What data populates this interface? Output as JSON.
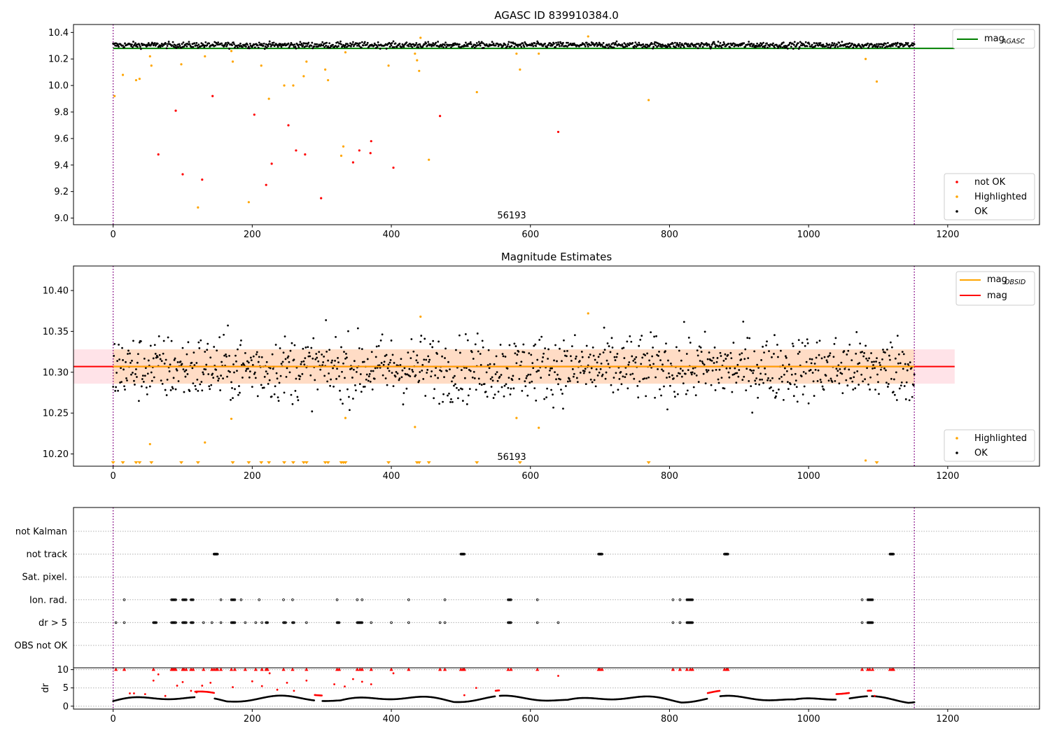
{
  "colors": {
    "ok": "#000000",
    "not_ok": "#ff0000",
    "highlighted": "#ffa500",
    "agasc_line": "#008000",
    "obsid_line": "#ffa500",
    "mag_line": "#ff0000",
    "obs_line": "#800080",
    "band_pink": "#ffc0cb",
    "band_orange": "#ffdab9"
  },
  "chart_data": [
    {
      "type": "scatter",
      "title": "AGASC ID 839910384.0",
      "xlim": [
        -57,
        1332
      ],
      "ylim": [
        8.95,
        10.46
      ],
      "xticks": [
        0,
        200,
        400,
        600,
        800,
        1000,
        1200
      ],
      "xtick_labels": [
        "0",
        "200",
        "400",
        "600",
        "800",
        "1000",
        "1200"
      ],
      "yticks": [
        9.0,
        9.2,
        9.4,
        9.6,
        9.8,
        10.0,
        10.2,
        10.4
      ],
      "ytick_labels": [
        "9.0",
        "9.2",
        "9.4",
        "9.6",
        "9.8",
        "10.0",
        "10.2",
        "10.4"
      ],
      "obsid_label": "56193",
      "obs_boundaries": [
        0,
        1152
      ],
      "legend": {
        "position": "upper right",
        "entries": [
          "mag",
          "AGASC"
        ]
      },
      "legend_points": {
        "position": "lower right",
        "entries": [
          "not OK",
          "Highlighted",
          "OK"
        ]
      },
      "agasc_mag": 10.28,
      "agasc_range": [
        0,
        1210
      ],
      "ok_band": {
        "center": 10.305,
        "spread": 0.05
      },
      "not_ok": [
        [
          65,
          9.48
        ],
        [
          90,
          9.81
        ],
        [
          100,
          9.33
        ],
        [
          128,
          9.29
        ],
        [
          143,
          9.92
        ],
        [
          203,
          9.78
        ],
        [
          220,
          9.25
        ],
        [
          228,
          9.41
        ],
        [
          252,
          9.7
        ],
        [
          263,
          9.51
        ],
        [
          276,
          9.48
        ],
        [
          299,
          9.15
        ],
        [
          345,
          9.42
        ],
        [
          354,
          9.51
        ],
        [
          370,
          9.49
        ],
        [
          371,
          9.58
        ],
        [
          403,
          9.38
        ],
        [
          470,
          9.77
        ],
        [
          640,
          9.65
        ]
      ],
      "highlighted": [
        [
          2,
          9.92
        ],
        [
          14,
          10.08
        ],
        [
          33,
          10.04
        ],
        [
          38,
          10.05
        ],
        [
          53,
          10.22
        ],
        [
          55,
          10.15
        ],
        [
          98,
          10.16
        ],
        [
          122,
          9.08
        ],
        [
          132,
          10.22
        ],
        [
          170,
          10.26
        ],
        [
          172,
          10.18
        ],
        [
          195,
          9.12
        ],
        [
          213,
          10.15
        ],
        [
          224,
          9.9
        ],
        [
          246,
          10.0
        ],
        [
          259,
          10.0
        ],
        [
          274,
          10.07
        ],
        [
          278,
          10.18
        ],
        [
          305,
          10.12
        ],
        [
          309,
          10.04
        ],
        [
          328,
          9.47
        ],
        [
          331,
          9.54
        ],
        [
          334,
          10.25
        ],
        [
          396,
          10.15
        ],
        [
          434,
          10.24
        ],
        [
          437,
          10.19
        ],
        [
          440,
          10.11
        ],
        [
          442,
          10.36
        ],
        [
          454,
          9.44
        ],
        [
          523,
          9.95
        ],
        [
          580,
          10.24
        ],
        [
          585,
          10.12
        ],
        [
          612,
          10.24
        ],
        [
          683,
          10.37
        ],
        [
          770,
          9.89
        ],
        [
          1082,
          10.2
        ],
        [
          1098,
          10.03
        ]
      ]
    },
    {
      "type": "scatter",
      "title": "Magnitude Estimates",
      "xlim": [
        -57,
        1332
      ],
      "ylim": [
        10.185,
        10.43
      ],
      "xticks": [
        0,
        200,
        400,
        600,
        800,
        1000,
        1200
      ],
      "xtick_labels": [
        "0",
        "200",
        "400",
        "600",
        "800",
        "1000",
        "1200"
      ],
      "yticks": [
        10.2,
        10.25,
        10.3,
        10.35,
        10.4
      ],
      "ytick_labels": [
        "10.20",
        "10.25",
        "10.30",
        "10.35",
        "10.40"
      ],
      "obsid_label": "56193",
      "obs_boundaries": [
        0,
        1152
      ],
      "legend": {
        "position": "upper right",
        "entries": [
          "mag",
          "OBSID",
          "mag"
        ]
      },
      "legend_points": {
        "position": "lower right",
        "entries": [
          "Highlighted",
          "OK"
        ]
      },
      "mag_obsid": 10.307,
      "mag": 10.307,
      "band_obsid": [
        10.286,
        10.328
      ],
      "band_mag": [
        10.286,
        10.328
      ],
      "band_range": [
        0,
        1210
      ],
      "ok_band": {
        "center": 10.305,
        "spread": 0.095
      },
      "highlighted": [
        [
          442,
          10.368
        ],
        [
          683,
          10.372
        ],
        [
          170,
          10.243
        ],
        [
          334,
          10.244
        ],
        [
          434,
          10.233
        ],
        [
          580,
          10.244
        ],
        [
          612,
          10.232
        ],
        [
          53,
          10.212
        ],
        [
          132,
          10.214
        ],
        [
          1082,
          10.192
        ]
      ],
      "below_range_markers": [
        0,
        14,
        33,
        38,
        55,
        98,
        122,
        172,
        195,
        213,
        224,
        246,
        259,
        274,
        278,
        305,
        309,
        328,
        331,
        334,
        396,
        437,
        440,
        454,
        523,
        585,
        770,
        1098
      ]
    },
    {
      "type": "scatter",
      "title": "",
      "xlim": [
        -57,
        1332
      ],
      "category_labels": [
        "not Kalman",
        "not track",
        "Sat. pixel.",
        "Ion. rad.",
        "dr > 5",
        "OBS not OK"
      ],
      "flags": {
        "not Kalman": [],
        "not track": [
          [
            145,
            150
          ],
          [
            500,
            505
          ],
          [
            698,
            703
          ],
          [
            879,
            884
          ],
          [
            1117,
            1122
          ]
        ],
        "Sat. pixel.": [],
        "Ion. rad.": [
          [
            16,
            16
          ],
          [
            84,
            90
          ],
          [
            100,
            105
          ],
          [
            112,
            115
          ],
          [
            155,
            155
          ],
          [
            170,
            175
          ],
          [
            184,
            184
          ],
          [
            210,
            210
          ],
          [
            245,
            245
          ],
          [
            258,
            258
          ],
          [
            322,
            322
          ],
          [
            351,
            351
          ],
          [
            358,
            358
          ],
          [
            425,
            425
          ],
          [
            477,
            477
          ],
          [
            568,
            572
          ],
          [
            610,
            610
          ],
          [
            805,
            805
          ],
          [
            815,
            815
          ],
          [
            825,
            833
          ],
          [
            1077,
            1077
          ],
          [
            1085,
            1092
          ]
        ],
        "dr > 5": [
          [
            4,
            4
          ],
          [
            16,
            16
          ],
          [
            58,
            62
          ],
          [
            84,
            90
          ],
          [
            100,
            105
          ],
          [
            112,
            115
          ],
          [
            130,
            130
          ],
          [
            142,
            142
          ],
          [
            155,
            155
          ],
          [
            170,
            175
          ],
          [
            190,
            190
          ],
          [
            205,
            205
          ],
          [
            214,
            214
          ],
          [
            220,
            222
          ],
          [
            245,
            248
          ],
          [
            258,
            260
          ],
          [
            278,
            278
          ],
          [
            322,
            325
          ],
          [
            351,
            358
          ],
          [
            371,
            371
          ],
          [
            400,
            400
          ],
          [
            425,
            425
          ],
          [
            470,
            470
          ],
          [
            477,
            477
          ],
          [
            568,
            572
          ],
          [
            610,
            610
          ],
          [
            640,
            640
          ],
          [
            805,
            805
          ],
          [
            815,
            815
          ],
          [
            825,
            833
          ],
          [
            1077,
            1077
          ],
          [
            1085,
            1092
          ]
        ],
        "OBS not OK": []
      }
    },
    {
      "type": "scatter",
      "title": "",
      "xlim": [
        -57,
        1332
      ],
      "ylim": [
        -0.8,
        10.5
      ],
      "yticks": [
        0,
        5,
        10
      ],
      "ytick_labels": [
        "0",
        "5",
        "10"
      ],
      "ylabel": "dr",
      "xticks": [
        0,
        200,
        400,
        600,
        800,
        1000,
        1200
      ],
      "xtick_labels": [
        "0",
        "200",
        "400",
        "600",
        "800",
        "1000",
        "1200"
      ],
      "dr_threshold": 5,
      "capped_value": 10,
      "red_segments": [
        [
          118,
          145
        ],
        [
          290,
          300
        ],
        [
          550,
          555
        ],
        [
          855,
          872
        ],
        [
          1040,
          1058
        ],
        [
          1085,
          1090
        ]
      ],
      "red_scatter": [
        [
          24,
          3.5
        ],
        [
          30,
          3.5
        ],
        [
          46,
          3.3
        ],
        [
          58,
          7.0
        ],
        [
          65,
          8.7
        ],
        [
          75,
          2.8
        ],
        [
          92,
          5.6
        ],
        [
          100,
          6.6
        ],
        [
          112,
          4.2
        ],
        [
          120,
          3.8
        ],
        [
          128,
          5.6
        ],
        [
          140,
          6.4
        ],
        [
          172,
          5.2
        ],
        [
          200,
          6.8
        ],
        [
          214,
          5.5
        ],
        [
          225,
          9.0
        ],
        [
          236,
          4.5
        ],
        [
          250,
          6.4
        ],
        [
          260,
          4.2
        ],
        [
          278,
          7.0
        ],
        [
          318,
          6.0
        ],
        [
          333,
          5.4
        ],
        [
          345,
          7.4
        ],
        [
          358,
          6.7
        ],
        [
          371,
          6.0
        ],
        [
          403,
          9.0
        ],
        [
          505,
          3.0
        ],
        [
          522,
          5.0
        ],
        [
          640,
          8.3
        ],
        [
          1095,
          2.8
        ]
      ],
      "capped_points": [
        [
          4,
          10
        ],
        [
          16,
          10
        ],
        [
          58,
          10
        ],
        [
          84,
          10
        ],
        [
          86,
          10
        ],
        [
          88,
          10
        ],
        [
          90,
          10
        ],
        [
          100,
          10
        ],
        [
          102,
          10
        ],
        [
          105,
          10
        ],
        [
          112,
          10
        ],
        [
          115,
          10
        ],
        [
          130,
          10
        ],
        [
          142,
          10
        ],
        [
          145,
          10
        ],
        [
          148,
          10
        ],
        [
          150,
          10
        ],
        [
          155,
          10
        ],
        [
          170,
          10
        ],
        [
          175,
          10
        ],
        [
          190,
          10
        ],
        [
          205,
          10
        ],
        [
          214,
          10
        ],
        [
          220,
          10
        ],
        [
          222,
          10
        ],
        [
          245,
          10
        ],
        [
          258,
          10
        ],
        [
          278,
          10
        ],
        [
          322,
          10
        ],
        [
          325,
          10
        ],
        [
          351,
          10
        ],
        [
          355,
          10
        ],
        [
          358,
          10
        ],
        [
          371,
          10
        ],
        [
          400,
          10
        ],
        [
          425,
          10
        ],
        [
          470,
          10
        ],
        [
          477,
          10
        ],
        [
          500,
          10
        ],
        [
          503,
          10
        ],
        [
          505,
          10
        ],
        [
          568,
          10
        ],
        [
          572,
          10
        ],
        [
          610,
          10
        ],
        [
          698,
          10
        ],
        [
          700,
          10
        ],
        [
          703,
          10
        ],
        [
          805,
          10
        ],
        [
          815,
          10
        ],
        [
          825,
          10
        ],
        [
          830,
          10
        ],
        [
          833,
          10
        ],
        [
          879,
          10
        ],
        [
          882,
          10
        ],
        [
          884,
          10
        ],
        [
          1077,
          10
        ],
        [
          1085,
          10
        ],
        [
          1088,
          10
        ],
        [
          1092,
          10
        ],
        [
          1117,
          10
        ],
        [
          1120,
          10
        ],
        [
          1122,
          10
        ]
      ]
    }
  ]
}
